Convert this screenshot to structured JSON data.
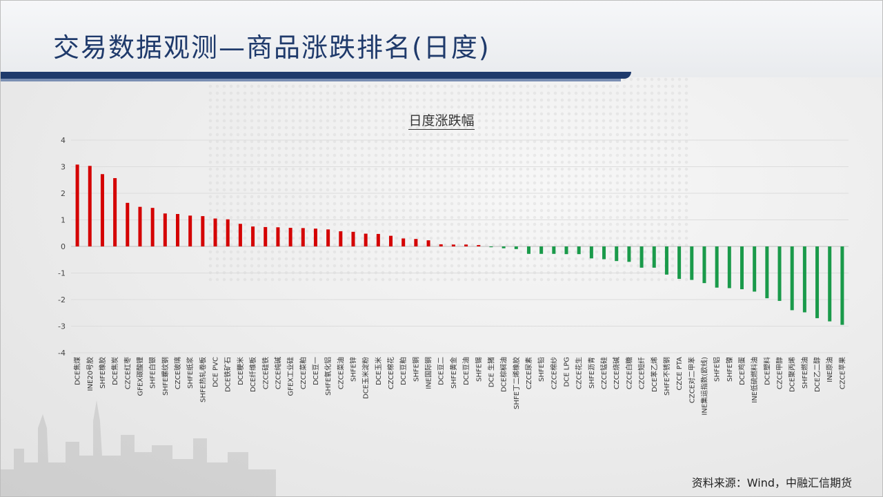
{
  "slide": {
    "title": "交易数据观测—商品涨跌排名(日度)",
    "source": "资料来源：Wind，中融汇信期货"
  },
  "colors": {
    "up": "#d40000",
    "down": "#1a9a4a",
    "title": "#1f3a6b"
  },
  "chart_data": {
    "type": "bar",
    "title": "日度涨跌幅",
    "xlabel": "",
    "ylabel": "",
    "ylim": [
      -4,
      4
    ],
    "yticks": [
      4,
      3,
      2,
      1,
      0,
      -1,
      -2,
      -3,
      -4
    ],
    "grid": true,
    "categories": [
      "DCE焦煤",
      "INE20号胶",
      "SHFE橡胶",
      "DCE焦炭",
      "CZCE红枣",
      "GFEX碳酸锂",
      "SHFE白银",
      "SHFE螺纹钢",
      "CZCE玻璃",
      "SHFE纸浆",
      "SHFE热轧卷板",
      "DCE PVC",
      "DCE铁矿石",
      "DCE粳米",
      "DCE纤维板",
      "CZCE硅铁",
      "CZCE纯碱",
      "GFEX工业硅",
      "CZCE菜粕",
      "DCE豆一",
      "SHFE氧化铝",
      "CZCE菜油",
      "SHFE锌",
      "DCE玉米淀粉",
      "DCE玉米",
      "CZCE棉花",
      "DCE豆粕",
      "SHFE铜",
      "INE国际铜",
      "DCE豆二",
      "SHFE黄金",
      "DCE豆油",
      "SHFE锡",
      "DCE 生猪",
      "DCE棕榈油",
      "SHFE丁二烯橡胶",
      "CZCE尿素",
      "SHFE铅",
      "CZCE棉纱",
      "DCE LPG",
      "CZCE花生",
      "SHFE沥青",
      "CZCE锰硅",
      "CZCE烧碱",
      "CZCE白糖",
      "CZCE短纤",
      "DCE苯乙烯",
      "SHFE不锈钢",
      "CZCE PTA",
      "CZCE对二甲苯",
      "INE集运指数(欧线)",
      "SHFE铝",
      "SHFE镍",
      "DCE鸡蛋",
      "INE低硫燃料油",
      "DCE塑料",
      "CZCE甲醇",
      "DCE聚丙烯",
      "SHFE燃油",
      "DCE乙二醇",
      "INE原油",
      "CZCE苹果"
    ],
    "values": [
      3.08,
      3.03,
      2.72,
      2.57,
      1.64,
      1.49,
      1.45,
      1.24,
      1.22,
      1.16,
      1.14,
      1.05,
      1.02,
      0.85,
      0.75,
      0.73,
      0.72,
      0.7,
      0.69,
      0.67,
      0.64,
      0.57,
      0.55,
      0.48,
      0.47,
      0.4,
      0.3,
      0.28,
      0.23,
      0.08,
      0.07,
      0.07,
      0.05,
      -0.03,
      -0.07,
      -0.1,
      -0.28,
      -0.28,
      -0.28,
      -0.29,
      -0.29,
      -0.45,
      -0.48,
      -0.55,
      -0.58,
      -0.8,
      -0.8,
      -1.06,
      -1.22,
      -1.26,
      -1.38,
      -1.55,
      -1.57,
      -1.61,
      -1.7,
      -1.95,
      -2.05,
      -2.4,
      -2.48,
      -2.7,
      -2.82,
      -2.95
    ]
  }
}
